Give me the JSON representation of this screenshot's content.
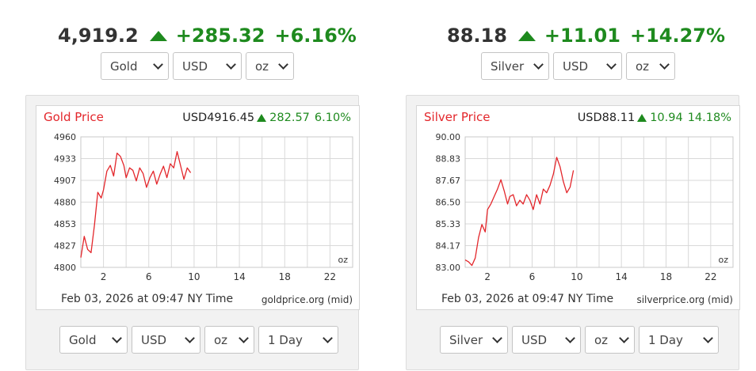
{
  "widgets": [
    {
      "id": "gold",
      "header": {
        "price": "4,919.2",
        "change": "+285.32",
        "percent": "+6.16%"
      },
      "top_selects": {
        "metal": "Gold",
        "currency": "USD",
        "unit": "oz"
      },
      "chart": {
        "title": "Gold Price",
        "quote_currency_price": "USD4916.45",
        "quote_change": "282.57",
        "quote_percent": "6.10%",
        "unit_label": "oz",
        "date_label": "Feb 03, 2026 at 09:47 NY Time",
        "source_label": "goldprice.org (mid)"
      },
      "bottom_selects": {
        "metal": "Gold",
        "currency": "USD",
        "unit": "oz",
        "range": "1 Day"
      }
    },
    {
      "id": "silver",
      "header": {
        "price": "88.18",
        "change": "+11.01",
        "percent": "+14.27%"
      },
      "top_selects": {
        "metal": "Silver",
        "currency": "USD",
        "unit": "oz"
      },
      "chart": {
        "title": "Silver Price",
        "quote_currency_price": "USD88.11",
        "quote_change": "10.94",
        "quote_percent": "14.18%",
        "unit_label": "oz",
        "date_label": "Feb 03, 2026 at 09:47 NY Time",
        "source_label": "silverprice.org (mid)"
      },
      "bottom_selects": {
        "metal": "Silver",
        "currency": "USD",
        "unit": "oz",
        "range": "1 Day"
      }
    }
  ],
  "colors": {
    "up_green": "#1e8a1e",
    "line_red": "#e3262b",
    "grid": "#d9d9d9",
    "panel_bg": "#f2f2f2"
  },
  "icons": {
    "up": "up-triangle-icon",
    "dropdown": "chevron-down-icon"
  },
  "chart_data": [
    {
      "type": "line",
      "title": "Gold Price",
      "xlabel": "Feb 03, 2026 at 09:47 NY Time",
      "ylabel": "",
      "xlim": [
        0,
        24
      ],
      "ylim": [
        4800,
        4960
      ],
      "x_ticks": [
        2,
        6,
        10,
        14,
        18,
        22
      ],
      "y_ticks": [
        "4960",
        "4933",
        "4907",
        "4880",
        "4853",
        "4827",
        "4800"
      ],
      "grid": true,
      "series": [
        {
          "x": [
            0,
            0.3,
            0.6,
            0.9,
            1.2,
            1.5,
            1.8,
            2.0,
            2.3,
            2.6,
            2.9,
            3.2,
            3.5,
            3.8,
            4.0,
            4.3,
            4.6,
            4.9,
            5.2,
            5.5,
            5.8,
            6.1,
            6.4,
            6.7,
            7.0,
            7.3,
            7.6,
            7.9,
            8.2,
            8.5,
            8.8,
            9.1,
            9.4,
            9.7
          ],
          "y": [
            4812,
            4838,
            4822,
            4818,
            4852,
            4892,
            4885,
            4895,
            4918,
            4925,
            4912,
            4940,
            4936,
            4925,
            4910,
            4922,
            4919,
            4906,
            4922,
            4915,
            4898,
            4910,
            4918,
            4902,
            4914,
            4924,
            4910,
            4927,
            4922,
            4942,
            4925,
            4908,
            4922,
            4916
          ]
        }
      ]
    },
    {
      "type": "line",
      "title": "Silver Price",
      "xlabel": "Feb 03, 2026 at 09:47 NY Time",
      "ylabel": "",
      "xlim": [
        0,
        24
      ],
      "ylim": [
        83.0,
        90.0
      ],
      "x_ticks": [
        2,
        6,
        10,
        14,
        18,
        22
      ],
      "y_ticks": [
        "90.00",
        "88.83",
        "87.67",
        "86.50",
        "85.33",
        "84.17",
        "83.00"
      ],
      "grid": true,
      "series": [
        {
          "x": [
            0,
            0.3,
            0.6,
            0.9,
            1.2,
            1.5,
            1.8,
            2.0,
            2.3,
            2.6,
            2.9,
            3.2,
            3.5,
            3.8,
            4.0,
            4.3,
            4.6,
            4.9,
            5.2,
            5.5,
            5.8,
            6.1,
            6.4,
            6.7,
            7.0,
            7.3,
            7.6,
            7.9,
            8.2,
            8.5,
            8.8,
            9.1,
            9.4,
            9.7
          ],
          "y": [
            83.4,
            83.3,
            83.1,
            83.5,
            84.6,
            85.3,
            84.9,
            86.1,
            86.4,
            86.8,
            87.2,
            87.7,
            87.1,
            86.4,
            86.8,
            86.9,
            86.3,
            86.6,
            86.4,
            86.9,
            86.6,
            86.1,
            86.9,
            86.4,
            87.2,
            87.0,
            87.4,
            88.0,
            88.9,
            88.4,
            87.6,
            87.0,
            87.3,
            88.2
          ]
        }
      ]
    }
  ]
}
